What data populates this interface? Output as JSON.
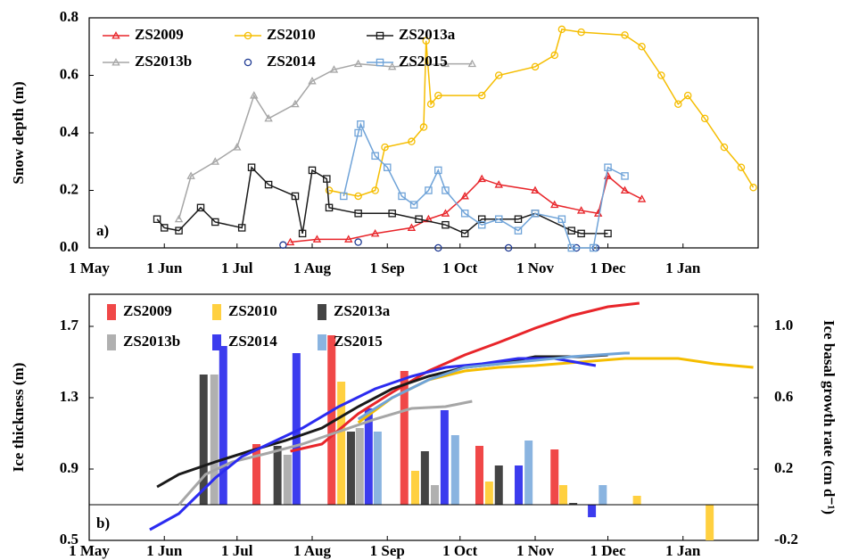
{
  "chart_data": [
    {
      "type": "line",
      "label": "a)",
      "y_label": "Snow depth (m)",
      "xlim": [
        0,
        276
      ],
      "ylim": [
        0,
        0.8
      ],
      "legend": "top-left",
      "xticks": [
        {
          "value": 0,
          "label": "1 May"
        },
        {
          "value": 31,
          "label": "1 Jun"
        },
        {
          "value": 61,
          "label": "1 Jul"
        },
        {
          "value": 92,
          "label": "1 Aug"
        },
        {
          "value": 123,
          "label": "1 Sep"
        },
        {
          "value": 153,
          "label": "1 Oct"
        },
        {
          "value": 184,
          "label": "1 Nov"
        },
        {
          "value": 214,
          "label": "1 Dec"
        },
        {
          "value": 245,
          "label": "1 Jan"
        }
      ],
      "yticks": [
        {
          "value": 0,
          "label": "0.0"
        },
        0.2,
        0.4,
        0.6,
        0.8
      ],
      "series": [
        {
          "name": "ZS2009",
          "color": "#e8252a",
          "marker": "triangle",
          "x": [
            83,
            94,
            107,
            118,
            133,
            140,
            147,
            155,
            162,
            169,
            184,
            192,
            203,
            210,
            214,
            221,
            228
          ],
          "values": [
            0.02,
            0.03,
            0.03,
            0.05,
            0.07,
            0.1,
            0.12,
            0.18,
            0.24,
            0.22,
            0.2,
            0.15,
            0.13,
            0.12,
            0.25,
            0.2,
            0.17
          ]
        },
        {
          "name": "ZS2010",
          "color": "#f5bd00",
          "marker": "circle",
          "x": [
            99,
            111,
            118,
            122,
            133,
            138,
            139,
            141,
            144,
            162,
            169,
            184,
            192,
            195,
            203,
            221,
            228,
            236,
            243,
            247,
            254,
            262,
            269,
            274
          ],
          "values": [
            0.2,
            0.18,
            0.2,
            0.35,
            0.37,
            0.42,
            0.72,
            0.5,
            0.53,
            0.53,
            0.6,
            0.63,
            0.67,
            0.76,
            0.75,
            0.74,
            0.7,
            0.6,
            0.5,
            0.53,
            0.45,
            0.35,
            0.28,
            0.21
          ]
        },
        {
          "name": "ZS2013a",
          "color": "#1a1a1a",
          "marker": "square",
          "x": [
            28,
            31,
            37,
            46,
            52,
            63,
            67,
            74,
            85,
            88,
            92,
            98,
            99,
            111,
            125,
            136,
            147,
            155,
            162,
            177,
            184,
            199,
            203,
            214
          ],
          "values": [
            0.1,
            0.07,
            0.06,
            0.14,
            0.09,
            0.07,
            0.28,
            0.22,
            0.18,
            0.05,
            0.27,
            0.24,
            0.14,
            0.12,
            0.12,
            0.1,
            0.08,
            0.05,
            0.1,
            0.1,
            0.12,
            0.06,
            0.05,
            0.05
          ]
        },
        {
          "name": "ZS2013b",
          "color": "#a6a6a6",
          "marker": "triangle",
          "x": [
            37,
            42,
            52,
            61,
            68,
            74,
            85,
            92,
            101,
            111,
            125,
            147,
            158
          ],
          "values": [
            0.1,
            0.25,
            0.3,
            0.35,
            0.53,
            0.45,
            0.5,
            0.58,
            0.62,
            0.64,
            0.63,
            0.64,
            0.64
          ]
        },
        {
          "name": "ZS2014",
          "color": "#1f3a93",
          "marker": "circle-open",
          "line": false,
          "x": [
            80,
            111,
            144,
            173,
            201,
            209
          ],
          "values": [
            0.01,
            0.02,
            0,
            0,
            0,
            0
          ]
        },
        {
          "name": "ZS2015",
          "color": "#6fa3d8",
          "marker": "square",
          "x": [
            105,
            111,
            112,
            118,
            123,
            129,
            134,
            140,
            144,
            147,
            155,
            162,
            169,
            177,
            184,
            195,
            199,
            208,
            214,
            221
          ],
          "values": [
            0.18,
            0.4,
            0.43,
            0.32,
            0.28,
            0.18,
            0.15,
            0.2,
            0.27,
            0.2,
            0.12,
            0.08,
            0.1,
            0.06,
            0.12,
            0.1,
            0,
            0,
            0.28,
            0.25
          ]
        }
      ]
    },
    {
      "type": "combo",
      "label": "b)",
      "y_label": "Ice thickness (m)",
      "y2_label": "Ice basal growth rate (cm d⁻¹)",
      "xlim": [
        0,
        276
      ],
      "ylim": [
        0.5,
        1.88
      ],
      "y2lim": [
        -0.2,
        1.18
      ],
      "legend": "top-left",
      "xticks": [
        {
          "value": 0,
          "label": "1 May"
        },
        {
          "value": 31,
          "label": "1 Jun"
        },
        {
          "value": 61,
          "label": "1 Jul"
        },
        {
          "value": 92,
          "label": "1 Aug"
        },
        {
          "value": 123,
          "label": "1 Sep"
        },
        {
          "value": 153,
          "label": "1 Oct"
        },
        {
          "value": 184,
          "label": "1 Nov"
        },
        {
          "value": 214,
          "label": "1 Dec"
        },
        {
          "value": 245,
          "label": "1 Jan"
        }
      ],
      "yticks": [
        0.5,
        0.9,
        1.3,
        1.7
      ],
      "y2ticks": [
        -0.2,
        0.2,
        0.6,
        {
          "value": 1,
          "label": "1.0"
        }
      ],
      "series": [
        {
          "name": "ZS2009",
          "color": "#e8252a",
          "bar_color": "#f04848",
          "x": [
            83,
            96,
            111,
            125,
            140,
            155,
            169,
            184,
            199,
            214,
            227
          ],
          "values": [
            1.0,
            1.04,
            1.21,
            1.33,
            1.45,
            1.54,
            1.61,
            1.69,
            1.76,
            1.81,
            1.83
          ],
          "bars": {
            "axis": "y2",
            "x": [
              69,
              100,
              130,
              161,
              192
            ],
            "values": [
              0.34,
              0.95,
              0.75,
              0.33,
              0.31
            ]
          }
        },
        {
          "name": "ZS2010",
          "color": "#f5bd00",
          "bar_color": "#ffd040",
          "x": [
            111,
            125,
            140,
            155,
            169,
            184,
            221,
            243,
            258,
            274
          ],
          "values": [
            1.16,
            1.3,
            1.4,
            1.45,
            1.47,
            1.48,
            1.52,
            1.52,
            1.49,
            1.47
          ],
          "bars": {
            "axis": "y2",
            "x": [
              104,
              134.5,
              165,
              195.6,
              226,
              256
            ],
            "values": [
              0.69,
              0.19,
              0.13,
              0.11,
              0.05,
              -0.2
            ]
          }
        },
        {
          "name": "ZS2013a",
          "color": "#1a1a1a",
          "bar_color": "#444444",
          "x": [
            28,
            37,
            52,
            66,
            81,
            96,
            111,
            125,
            140,
            155,
            169,
            184,
            203,
            214
          ],
          "values": [
            0.8,
            0.87,
            0.94,
            1.0,
            1.06,
            1.13,
            1.25,
            1.35,
            1.42,
            1.47,
            1.49,
            1.53,
            1.53,
            1.54
          ],
          "bars": {
            "axis": "y2",
            "x": [
              47.2,
              77.7,
              108,
              138.5,
              169,
              199.7
            ],
            "values": [
              0.73,
              0.33,
              0.41,
              0.3,
              0.22,
              0.01
            ]
          }
        },
        {
          "name": "ZS2013b",
          "color": "#a6a6a6",
          "bar_color": "#b0b0b0",
          "x": [
            37,
            48,
            59,
            74,
            88,
            103,
            118,
            133,
            147,
            158
          ],
          "values": [
            0.7,
            0.87,
            0.94,
            0.99,
            1.04,
            1.11,
            1.18,
            1.24,
            1.25,
            1.28
          ],
          "bars": {
            "axis": "y2",
            "x": [
              51.6,
              81.8,
              111.6,
              142.6
            ],
            "values": [
              0.73,
              0.28,
              0.43,
              0.11
            ]
          }
        },
        {
          "name": "ZS2014",
          "color": "#2b2bf0",
          "bar_color": "#3c3cee",
          "x": [
            25,
            37,
            52,
            63,
            74,
            88,
            103,
            118,
            133,
            147,
            162,
            177,
            192,
            209
          ],
          "values": [
            0.56,
            0.65,
            0.85,
            0.97,
            1.04,
            1.13,
            1.25,
            1.35,
            1.42,
            1.47,
            1.49,
            1.52,
            1.52,
            1.48
          ],
          "bars": {
            "axis": "y2",
            "x": [
              55.3,
              85.5,
              115.3,
              146.6,
              177.2,
              207.4
            ],
            "values": [
              0.89,
              0.85,
              0.54,
              0.53,
              0.22,
              -0.07
            ]
          }
        },
        {
          "name": "ZS2015",
          "color": "#6fa3d8",
          "bar_color": "#8ab4e0",
          "x": [
            111,
            125,
            140,
            155,
            177,
            199,
            221,
            223
          ],
          "values": [
            1.18,
            1.3,
            1.4,
            1.47,
            1.5,
            1.53,
            1.55,
            1.55
          ],
          "bars": {
            "axis": "y2",
            "x": [
              119,
              151,
              181.3,
              211.9
            ],
            "values": [
              0.41,
              0.39,
              0.36,
              0.11
            ]
          }
        }
      ]
    }
  ]
}
